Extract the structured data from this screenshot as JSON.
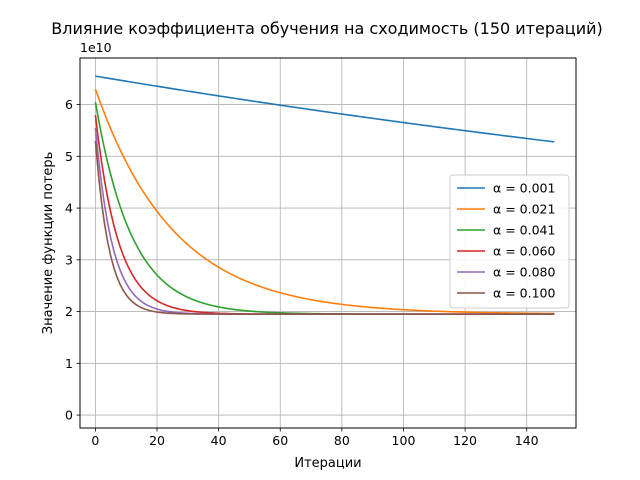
{
  "chart_data": {
    "type": "line",
    "title": "Влияние коэффициента обучения на сходимость (150 итераций)",
    "xlabel": "Итерации",
    "ylabel": "Значение функции потерь",
    "y_multiplier_label": "1e10",
    "y_scale_factor": 10000000000,
    "xlim": [
      -5,
      156
    ],
    "ylim": [
      -0.25,
      6.9
    ],
    "xticks": [
      0,
      20,
      40,
      60,
      80,
      100,
      120,
      140
    ],
    "yticks": [
      0,
      1,
      2,
      3,
      4,
      5,
      6
    ],
    "grid": true,
    "legend_position": "center-right",
    "model": "y = floor + (start - floor) * exp(-k * x)",
    "series": [
      {
        "name": "α = 0.001",
        "color": "#1f77b4",
        "start": 6.55,
        "floor": 1.95,
        "k": 0.00217,
        "x_end": 149
      },
      {
        "name": "α = 0.021",
        "color": "#ff7f0e",
        "start": 6.3,
        "floor": 1.95,
        "k": 0.0392,
        "x_end": 149
      },
      {
        "name": "α = 0.041",
        "color": "#2ca02c",
        "start": 6.05,
        "floor": 1.95,
        "k": 0.0845,
        "x_end": 149
      },
      {
        "name": "α = 0.060",
        "color": "#d62728",
        "start": 5.8,
        "floor": 1.95,
        "k": 0.135,
        "x_end": 149
      },
      {
        "name": "α = 0.080",
        "color": "#9467bd",
        "start": 5.55,
        "floor": 1.95,
        "k": 0.18,
        "x_end": 149
      },
      {
        "name": "α = 0.100",
        "color": "#8c564b",
        "start": 5.3,
        "floor": 1.95,
        "k": 0.22,
        "x_end": 149
      }
    ]
  }
}
